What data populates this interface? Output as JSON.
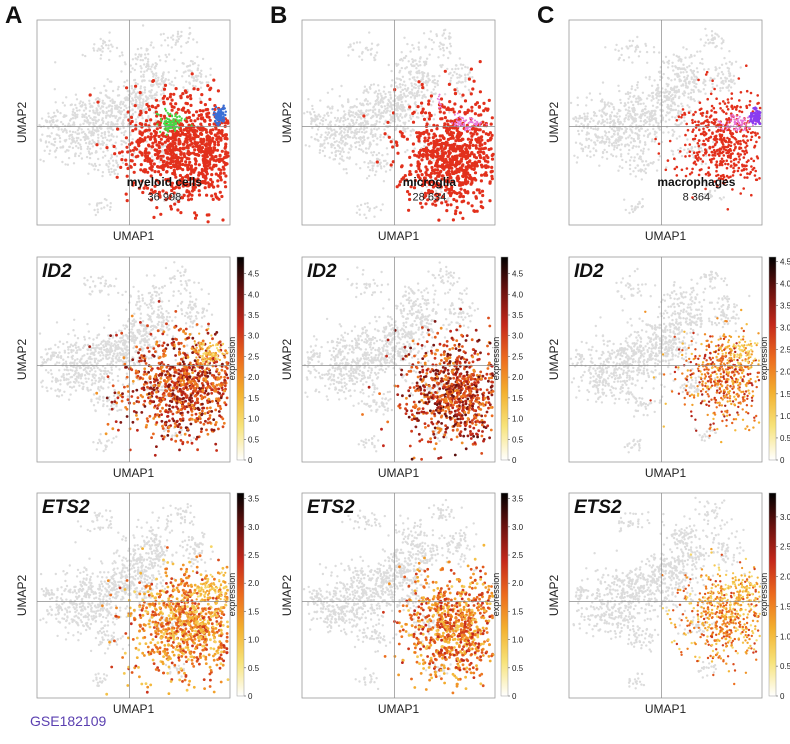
{
  "figure": {
    "panel_letters": [
      "A",
      "B",
      "C"
    ],
    "source": "GSE182109"
  },
  "colors": {
    "background_cells": "#dcdcdc",
    "red": "#e2301c",
    "green": "#46d846",
    "blue": "#3a6fd6",
    "pink": "#e876d8",
    "purple": "#8a3cf0",
    "axis_line": "#8a8a8a",
    "colorscale": [
      "#ffffff",
      "#f7e37a",
      "#f3b02f",
      "#ec6b1e",
      "#c4281b",
      "#6b120f",
      "#000000"
    ]
  },
  "chart_data": [
    {
      "type": "scatter",
      "kind": "cluster",
      "panel": "A",
      "xlabel": "UMAP1",
      "ylabel": "UMAP2",
      "title": "myeloid cells",
      "count": "36 998",
      "highlight": "myeloid",
      "legend": []
    },
    {
      "type": "scatter",
      "kind": "cluster",
      "panel": "B",
      "xlabel": "UMAP1",
      "ylabel": "UMAP2",
      "title": "microglia",
      "count": "28 634",
      "highlight": "microglia",
      "legend": []
    },
    {
      "type": "scatter",
      "kind": "cluster",
      "panel": "C",
      "xlabel": "UMAP1",
      "ylabel": "UMAP2",
      "title": "macrophages",
      "count": "8 364",
      "highlight": "macrophages",
      "legend": []
    },
    {
      "type": "scatter",
      "kind": "expression",
      "panel": "A",
      "gene": "ID2",
      "xlabel": "UMAP1",
      "ylabel": "UMAP2",
      "colorbar_label": "expression",
      "colorbar_range": [
        0,
        4.9
      ],
      "colorbar_ticks": [
        "0",
        "0.5",
        "1.0",
        "1.5",
        "2.0",
        "2.5",
        "3.0",
        "3.5",
        "4.0",
        "4.5"
      ],
      "subset": "myeloid",
      "level": 0.62
    },
    {
      "type": "scatter",
      "kind": "expression",
      "panel": "B",
      "gene": "ID2",
      "xlabel": "UMAP1",
      "ylabel": "UMAP2",
      "colorbar_label": "expression",
      "colorbar_range": [
        0,
        4.9
      ],
      "colorbar_ticks": [
        "0",
        "0.5",
        "1.0",
        "1.5",
        "2.0",
        "2.5",
        "3.0",
        "3.5",
        "4.0",
        "4.5"
      ],
      "subset": "microglia",
      "level": 0.64
    },
    {
      "type": "scatter",
      "kind": "expression",
      "panel": "C",
      "gene": "ID2",
      "xlabel": "UMAP1",
      "ylabel": "UMAP2",
      "colorbar_label": "expression",
      "colorbar_range": [
        0,
        4.6
      ],
      "colorbar_ticks": [
        "0",
        "0.5",
        "1.0",
        "1.5",
        "2.0",
        "2.5",
        "3.0",
        "3.5",
        "4.0",
        "4.5"
      ],
      "subset": "macrophages",
      "level": 0.52
    },
    {
      "type": "scatter",
      "kind": "expression",
      "panel": "A",
      "gene": "ETS2",
      "xlabel": "UMAP1",
      "ylabel": "UMAP2",
      "colorbar_label": "expression",
      "colorbar_range": [
        0,
        3.6
      ],
      "colorbar_ticks": [
        "0",
        "0.5",
        "1.0",
        "1.5",
        "2.0",
        "2.5",
        "3.0",
        "3.5"
      ],
      "subset": "myeloid",
      "level": 0.45
    },
    {
      "type": "scatter",
      "kind": "expression",
      "panel": "B",
      "gene": "ETS2",
      "xlabel": "UMAP1",
      "ylabel": "UMAP2",
      "colorbar_label": "expression",
      "colorbar_range": [
        0,
        3.6
      ],
      "colorbar_ticks": [
        "0",
        "0.5",
        "1.0",
        "1.5",
        "2.0",
        "2.5",
        "3.0",
        "3.5"
      ],
      "subset": "microglia",
      "level": 0.48
    },
    {
      "type": "scatter",
      "kind": "expression",
      "panel": "C",
      "gene": "ETS2",
      "xlabel": "UMAP1",
      "ylabel": "UMAP2",
      "colorbar_label": "expression",
      "colorbar_range": [
        0,
        3.4
      ],
      "colorbar_ticks": [
        "0",
        "0.5",
        "1.0",
        "1.5",
        "2.0",
        "2.5",
        "3.0"
      ],
      "subset": "macrophages",
      "level": 0.42
    }
  ]
}
